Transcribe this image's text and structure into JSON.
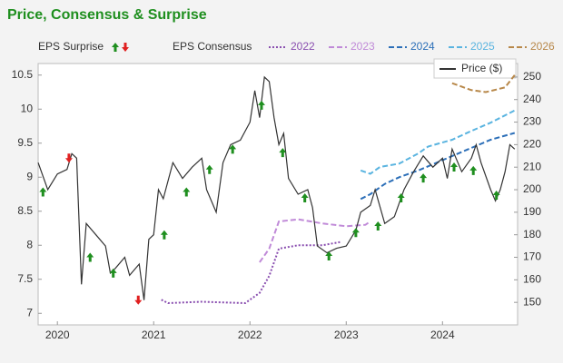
{
  "chart_data": {
    "type": "line",
    "title": "Price, Consensus & Surprise",
    "surprise_label": "EPS Surprise",
    "consensus_label": "EPS Consensus",
    "xlim": [
      2019.8,
      2024.78
    ],
    "xticks": [
      2020,
      2021,
      2022,
      2023,
      2024
    ],
    "ylim": [
      6.83,
      10.67
    ],
    "yticks": [
      7,
      7.5,
      8,
      8.5,
      9,
      9.5,
      10,
      10.5
    ],
    "y2lim": [
      140,
      256
    ],
    "y2ticks": [
      150,
      160,
      170,
      180,
      190,
      200,
      210,
      220,
      230,
      240,
      250
    ],
    "grid": false,
    "series": [
      {
        "name": "2022",
        "color": "#8a4fb0",
        "dash": "dotted",
        "x": [
          2021.08,
          2021.15,
          2021.5,
          2021.95,
          2022.1,
          2022.2,
          2022.3,
          2022.5,
          2022.75,
          2022.95
        ],
        "values": [
          7.2,
          7.15,
          7.17,
          7.15,
          7.3,
          7.55,
          7.95,
          8.0,
          8.0,
          8.05
        ]
      },
      {
        "name": "2023",
        "color": "#c08ad8",
        "dash": "dashed",
        "x": [
          2022.1,
          2022.2,
          2022.3,
          2022.5,
          2022.75,
          2023.0,
          2023.2,
          2023.25
        ],
        "values": [
          7.75,
          7.95,
          8.35,
          8.38,
          8.32,
          8.28,
          8.3,
          8.35
        ]
      },
      {
        "name": "2024",
        "color": "#2c6fb8",
        "dash": "dashed",
        "x": [
          2023.15,
          2023.25,
          2023.4,
          2023.55,
          2023.75,
          2024.0,
          2024.25,
          2024.5,
          2024.75
        ],
        "values": [
          8.68,
          8.75,
          8.9,
          9.0,
          9.1,
          9.25,
          9.4,
          9.55,
          9.65
        ]
      },
      {
        "name": "2025",
        "color": "#5ab4e0",
        "dash": "dashed",
        "x": [
          2023.15,
          2023.25,
          2023.35,
          2023.55,
          2023.75,
          2023.85,
          2024.1,
          2024.3,
          2024.5,
          2024.75
        ],
        "values": [
          9.1,
          9.05,
          9.15,
          9.2,
          9.35,
          9.45,
          9.55,
          9.68,
          9.8,
          9.98
        ]
      },
      {
        "name": "2026",
        "color": "#b8884a",
        "dash": "dashed",
        "x": [
          2024.1,
          2024.3,
          2024.45,
          2024.65,
          2024.75
        ],
        "values": [
          10.38,
          10.28,
          10.25,
          10.32,
          10.5
        ]
      },
      {
        "name": "Price ($)",
        "color": "#333333",
        "dash": "solid",
        "axis": "y2",
        "x": [
          2019.8,
          2019.9,
          2020.0,
          2020.1,
          2020.15,
          2020.2,
          2020.25,
          2020.3,
          2020.4,
          2020.5,
          2020.55,
          2020.6,
          2020.7,
          2020.75,
          2020.85,
          2020.9,
          2020.95,
          2021.0,
          2021.05,
          2021.1,
          2021.2,
          2021.3,
          2021.4,
          2021.5,
          2021.55,
          2021.65,
          2021.72,
          2021.8,
          2021.9,
          2022.0,
          2022.05,
          2022.1,
          2022.15,
          2022.2,
          2022.25,
          2022.3,
          2022.35,
          2022.4,
          2022.5,
          2022.6,
          2022.65,
          2022.7,
          2022.8,
          2022.9,
          2023.0,
          2023.1,
          2023.15,
          2023.25,
          2023.3,
          2023.4,
          2023.5,
          2023.6,
          2023.7,
          2023.8,
          2023.9,
          2024.0,
          2024.05,
          2024.1,
          2024.2,
          2024.3,
          2024.35,
          2024.4,
          2024.5,
          2024.55,
          2024.6,
          2024.65,
          2024.7,
          2024.75
        ],
        "values": [
          212,
          200,
          207,
          209,
          216,
          214,
          158,
          185,
          180,
          175,
          163,
          165,
          170,
          162,
          167,
          151,
          178,
          180,
          200,
          196,
          212,
          205,
          210,
          214,
          200,
          190,
          212,
          220,
          222,
          230,
          244,
          232,
          250,
          248,
          232,
          220,
          225,
          205,
          198,
          200,
          192,
          175,
          172,
          174,
          175,
          182,
          190,
          193,
          200,
          185,
          188,
          200,
          208,
          215,
          210,
          214,
          205,
          218,
          208,
          214,
          220,
          212,
          200,
          195,
          200,
          208,
          220,
          218
        ]
      }
    ],
    "surprises": {
      "axis": "y2",
      "up_color": "#1f8f1f",
      "down_color": "#e02020",
      "x": [
        2019.85,
        2020.12,
        2020.34,
        2020.58,
        2020.84,
        2021.11,
        2021.34,
        2021.58,
        2021.82,
        2022.12,
        2022.34,
        2022.57,
        2022.82,
        2023.1,
        2023.33,
        2023.57,
        2023.8,
        2024.12,
        2024.32,
        2024.56
      ],
      "values": [
        199,
        214,
        170,
        163,
        151,
        180,
        199,
        209,
        218,
        237.5,
        216.5,
        196.4,
        170.6,
        181,
        183.9,
        196.4,
        205.2,
        210.1,
        208.5,
        197.6
      ],
      "direction": [
        "up",
        "down",
        "up",
        "up",
        "down",
        "up",
        "up",
        "up",
        "up",
        "up",
        "up",
        "up",
        "up",
        "up",
        "up",
        "up",
        "up",
        "up",
        "up",
        "up"
      ]
    }
  }
}
